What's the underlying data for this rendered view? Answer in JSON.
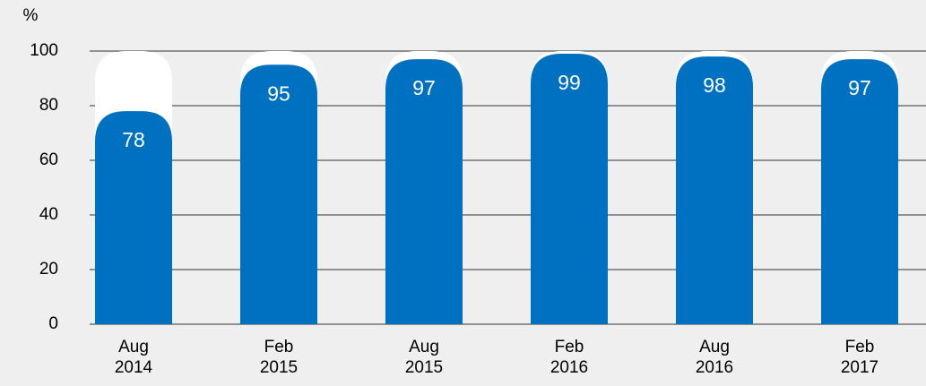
{
  "chart_data": {
    "type": "bar",
    "y_label": "%",
    "categories": [
      "Aug 2014",
      "Feb 2015",
      "Aug 2015",
      "Feb 2016",
      "Aug 2016",
      "Feb 2017"
    ],
    "values": [
      78,
      95,
      97,
      99,
      98,
      97
    ],
    "color": "#0070c0",
    "track_color": "#ffffff",
    "ylim": [
      0,
      100
    ],
    "yticks": [
      0,
      20,
      40,
      60,
      80,
      100
    ],
    "grid": true
  }
}
